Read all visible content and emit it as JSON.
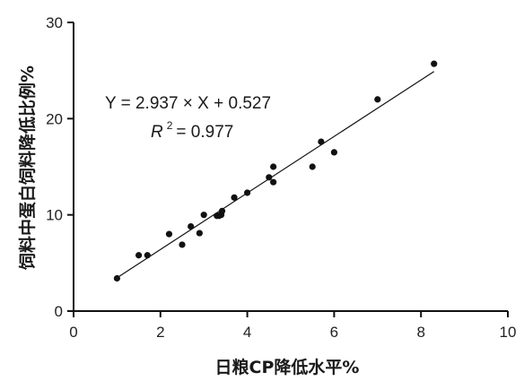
{
  "chart_data": {
    "type": "scatter",
    "xlabel": "日粮CP降低水平%",
    "ylabel": "饲料中蛋白饲料降低比例%",
    "xlim": [
      0,
      10
    ],
    "ylim": [
      0,
      30
    ],
    "x_ticks": [
      0,
      2,
      4,
      6,
      8,
      10
    ],
    "y_ticks": [
      0,
      10,
      20,
      30
    ],
    "grid": false,
    "legend": "none",
    "colors": {
      "points": "#111111",
      "line": "#111111",
      "axes": "#111111"
    },
    "series": [
      {
        "x": [
          1.0,
          1.5,
          1.7,
          2.2,
          2.5,
          2.7,
          2.9,
          3.0,
          3.3,
          3.35,
          3.4,
          3.42,
          3.7,
          4.0,
          4.5,
          4.6,
          4.6,
          5.5,
          5.7,
          6.0,
          7.0,
          8.3
        ],
        "y": [
          3.4,
          5.8,
          5.8,
          8.0,
          6.9,
          8.8,
          8.1,
          10.0,
          9.9,
          9.9,
          10.0,
          10.4,
          11.8,
          12.3,
          13.9,
          13.4,
          15.0,
          15.0,
          17.6,
          16.5,
          22.0,
          25.7
        ]
      }
    ],
    "fit_line": {
      "slope": 2.937,
      "intercept": 0.527,
      "x_range": [
        1.0,
        8.3
      ]
    },
    "annotations": {
      "equation": "Y = 2.937 × X + 0.527",
      "r2_prefix": "R",
      "r2_sup": "2",
      "r2_rest": " = 0.977"
    }
  }
}
